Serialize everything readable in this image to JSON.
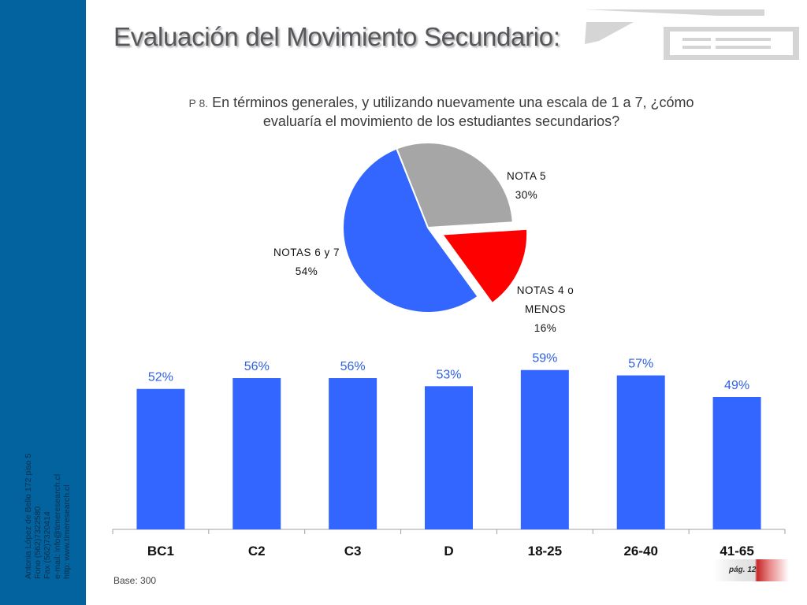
{
  "title": "Evaluación del Movimiento Secundario:",
  "question": {
    "number": "P 8.",
    "text": "En términos generales, y utilizando nuevamente una escala de 1 a 7, ¿cómo evaluaría el movimiento de los estudiantes secundarios?"
  },
  "sidebar": {
    "contact_lines": [
      "Antonia López de Bello 172 piso 5",
      "Fono (562)7322580",
      "Fax (562)7320414",
      "e-mail: info@timeresearch.cl",
      "http: www.timeresearch.cl"
    ]
  },
  "footer": {
    "base_note": "Base: 300",
    "page_label": "pág. 12"
  },
  "colors": {
    "sidebar": "#03639e",
    "bar": "#3366ff",
    "pie_blue": "#3366ff",
    "pie_gray": "#a6a6a6",
    "pie_red": "#ff0000",
    "value_label": "#2d5fe0"
  },
  "chart_data": [
    {
      "type": "pie",
      "slices": [
        {
          "label_lines": [
            "NOTA  5"
          ],
          "value": 30,
          "value_label": "30%",
          "color": "#a6a6a6"
        },
        {
          "label_lines": [
            "NOTAS 4 o",
            "MENOS"
          ],
          "value": 16,
          "value_label": "16%",
          "color": "#ff0000",
          "exploded": true
        },
        {
          "label_lines": [
            "NOTAS 6 y 7"
          ],
          "value": 54,
          "value_label": "54%",
          "color": "#3366ff"
        }
      ]
    },
    {
      "type": "bar",
      "categories": [
        "BC1",
        "C2",
        "C3",
        "D",
        "18-25",
        "26-40",
        "41-65"
      ],
      "values": [
        52,
        56,
        56,
        53,
        59,
        57,
        49
      ],
      "value_labels": [
        "52%",
        "56%",
        "56%",
        "53%",
        "59%",
        "57%",
        "49%"
      ],
      "ylim": [
        0,
        70
      ],
      "grid": false
    }
  ]
}
